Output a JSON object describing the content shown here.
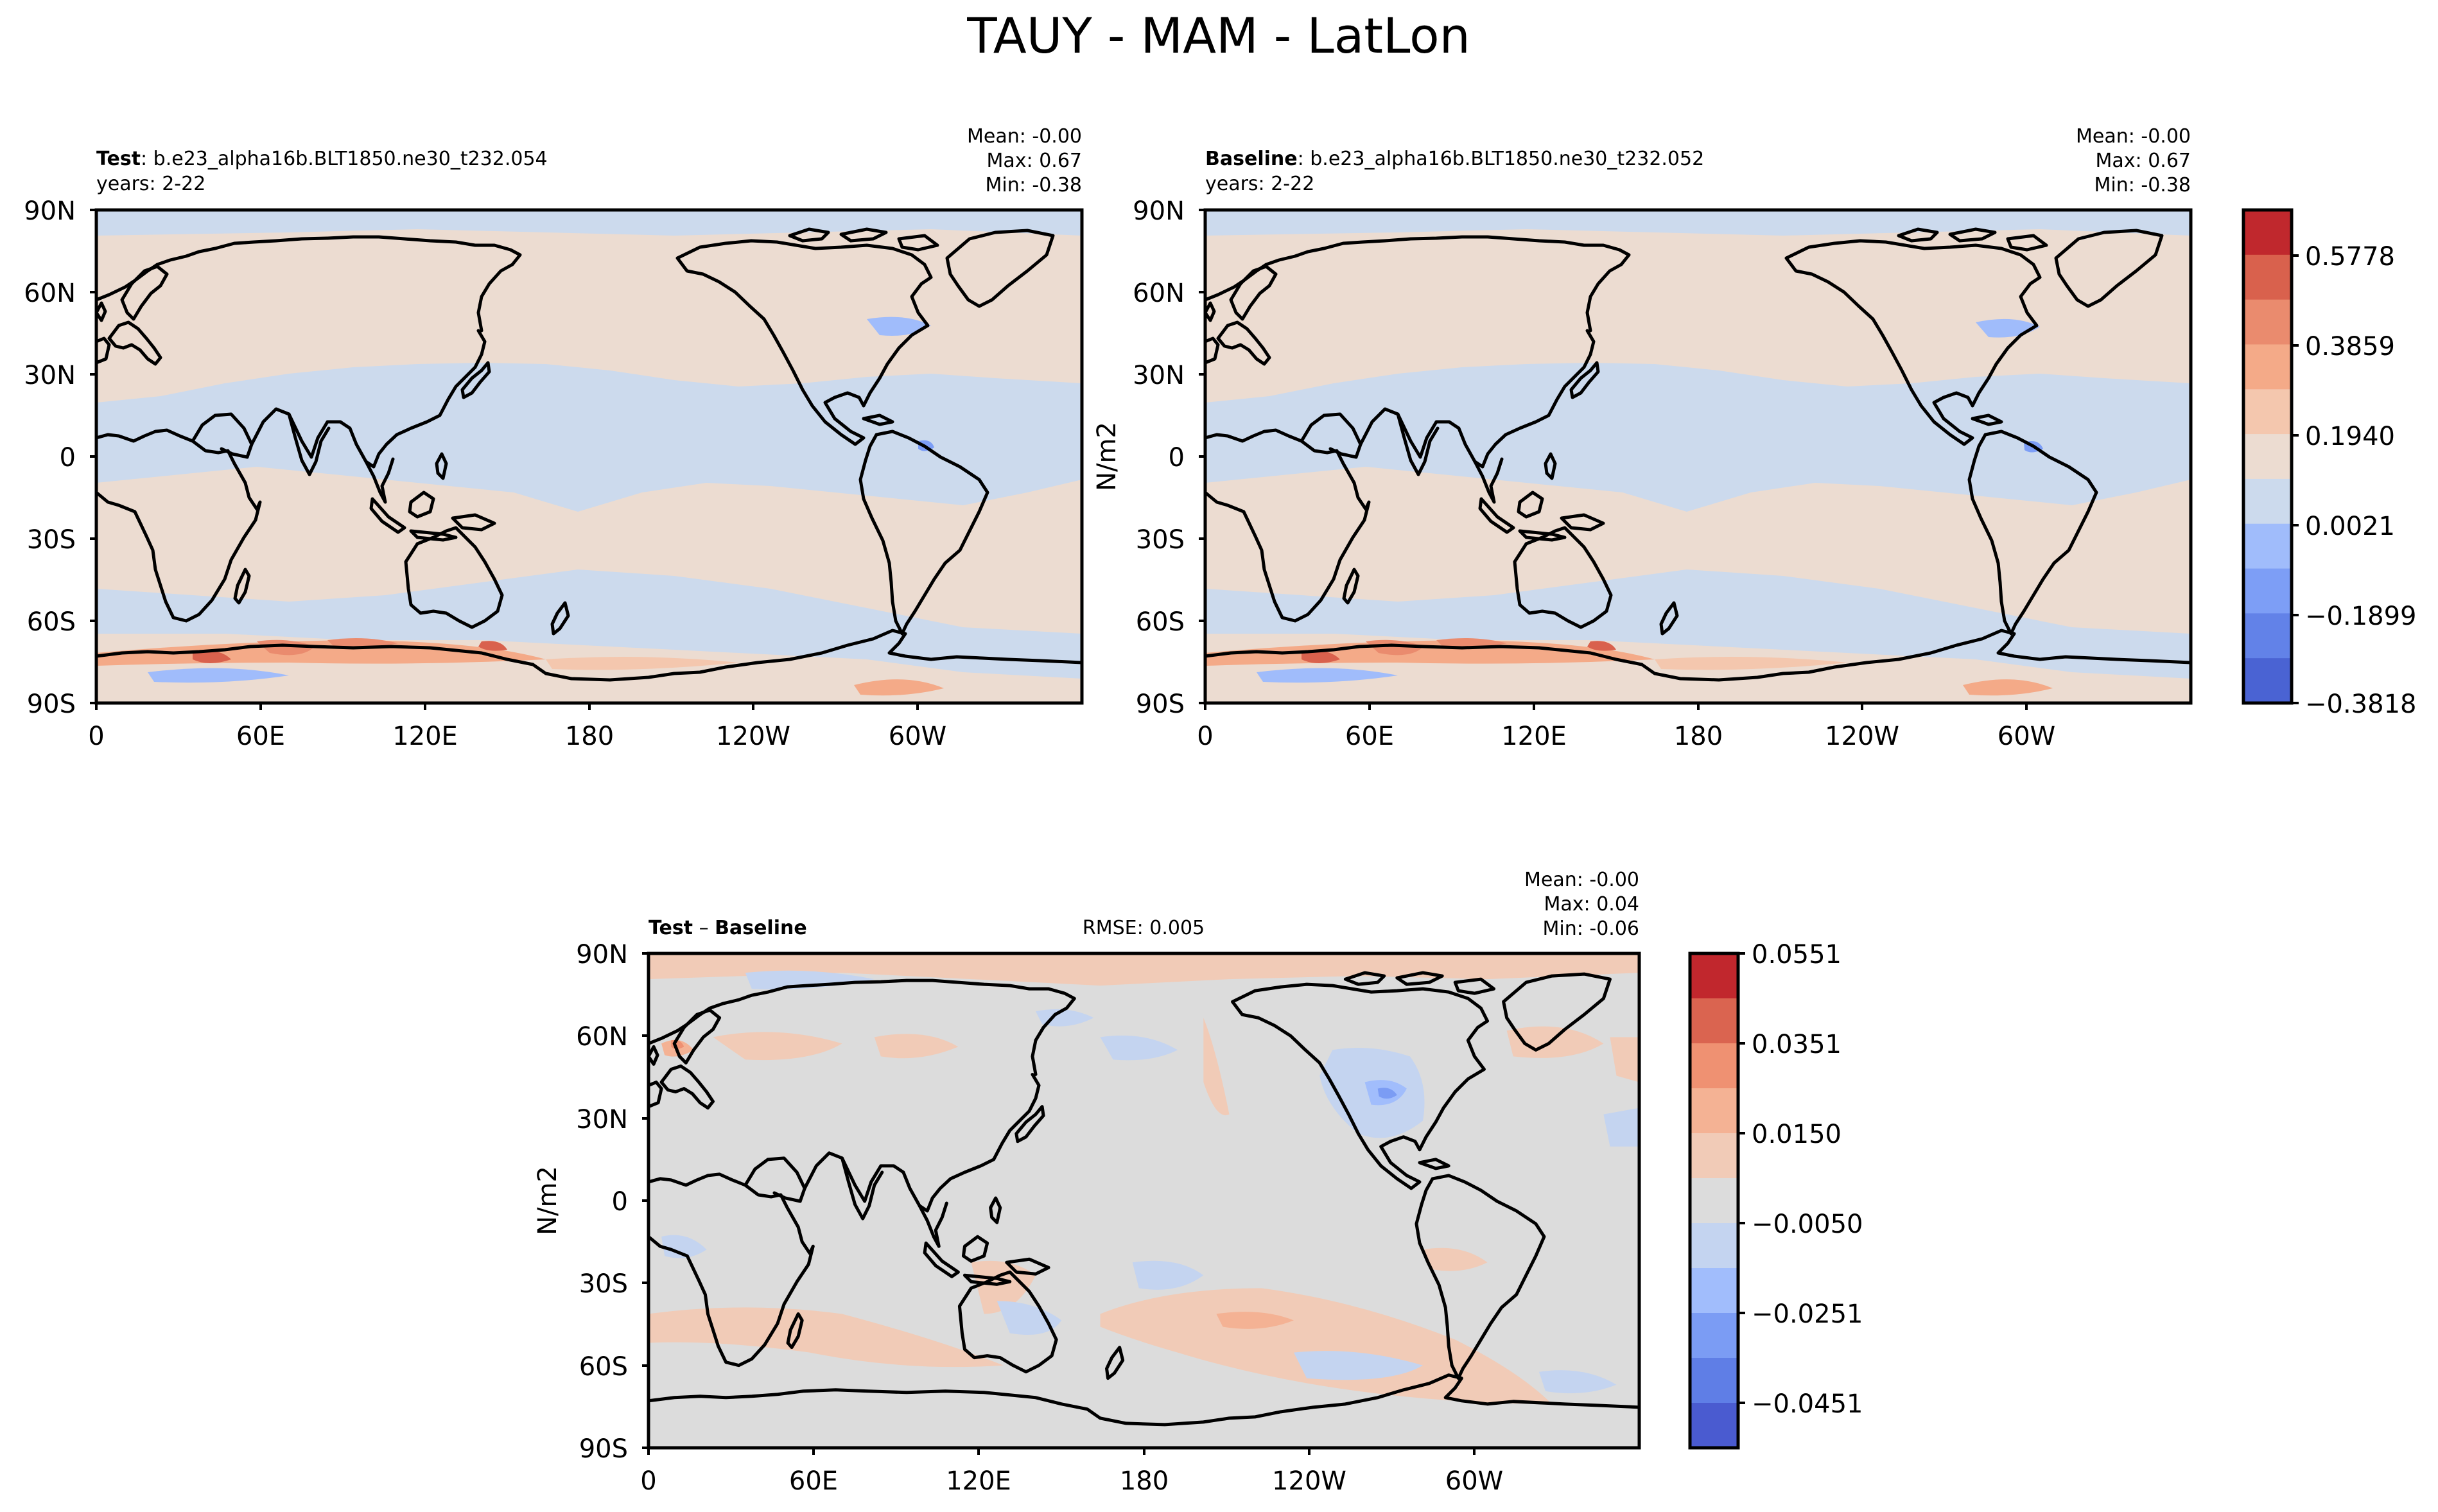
{
  "figure": {
    "title": "TAUY - MAM - LatLon"
  },
  "palette": {
    "coolwarm_11": [
      "#4a63d3",
      "#6282e8",
      "#7d9ef6",
      "#a0bcfb",
      "#c9d8f0",
      "#dddddd",
      "#eed6c9",
      "#f5c0a4",
      "#f09e7d",
      "#de6752",
      "#c12b2e"
    ],
    "main_bands": [
      "#4a63d3",
      "#6282e8",
      "#7d9ef6",
      "#a0bcfb",
      "#ccdaed",
      "#ecdcd1",
      "#f4c7ae",
      "#f4aa88",
      "#ea8b6e",
      "#d9614d",
      "#c0282d"
    ],
    "diff_bands": [
      "#4a5bd0",
      "#5f7ee6",
      "#7b9cf4",
      "#a1bdfc",
      "#c4d4f0",
      "#dcdcdc",
      "#f1cbb7",
      "#f4b294",
      "#ef9172",
      "#da6450",
      "#c1272d"
    ]
  },
  "panels": [
    {
      "id": "test",
      "label_bold": "Test",
      "label_rest": ": b.e23_alpha16b.BLT1850.ne30_t232.054",
      "years": "years: 2-22",
      "stats": {
        "mean": "Mean: -0.00",
        "max": "Max:  0.67",
        "min": "Min: -0.38"
      },
      "ylabel": ""
    },
    {
      "id": "baseline",
      "label_bold": "Baseline",
      "label_rest": ": b.e23_alpha16b.BLT1850.ne30_t232.052",
      "years": "years: 2-22",
      "stats": {
        "mean": "Mean: -0.00",
        "max": "Max:  0.67",
        "min": "Min: -0.38"
      },
      "ylabel": "N/m2"
    },
    {
      "id": "difference",
      "label_bold": "Test",
      "label_minus": " – ",
      "label_bold2": "Baseline",
      "rmse": "RMSE: 0.005",
      "stats": {
        "mean": "Mean: -0.00",
        "max": "Max:  0.04",
        "min": "Min: -0.06"
      },
      "ylabel": "N/m2"
    }
  ],
  "axes": {
    "lat_ticks": [
      "90N",
      "60N",
      "30N",
      "0",
      "30S",
      "60S",
      "90S"
    ],
    "lon_ticks": [
      "0",
      "60E",
      "120E",
      "180",
      "120W",
      "60W"
    ]
  },
  "colorbars": {
    "main": {
      "tick_labels": [
        "0.5778",
        "0.3859",
        "0.1940",
        "0.0021",
        "−0.1899",
        "−0.3818"
      ]
    },
    "diff": {
      "tick_labels": [
        "0.0551",
        "0.0351",
        "0.0150",
        "−0.0050",
        "−0.0251",
        "−0.0451"
      ]
    }
  }
}
